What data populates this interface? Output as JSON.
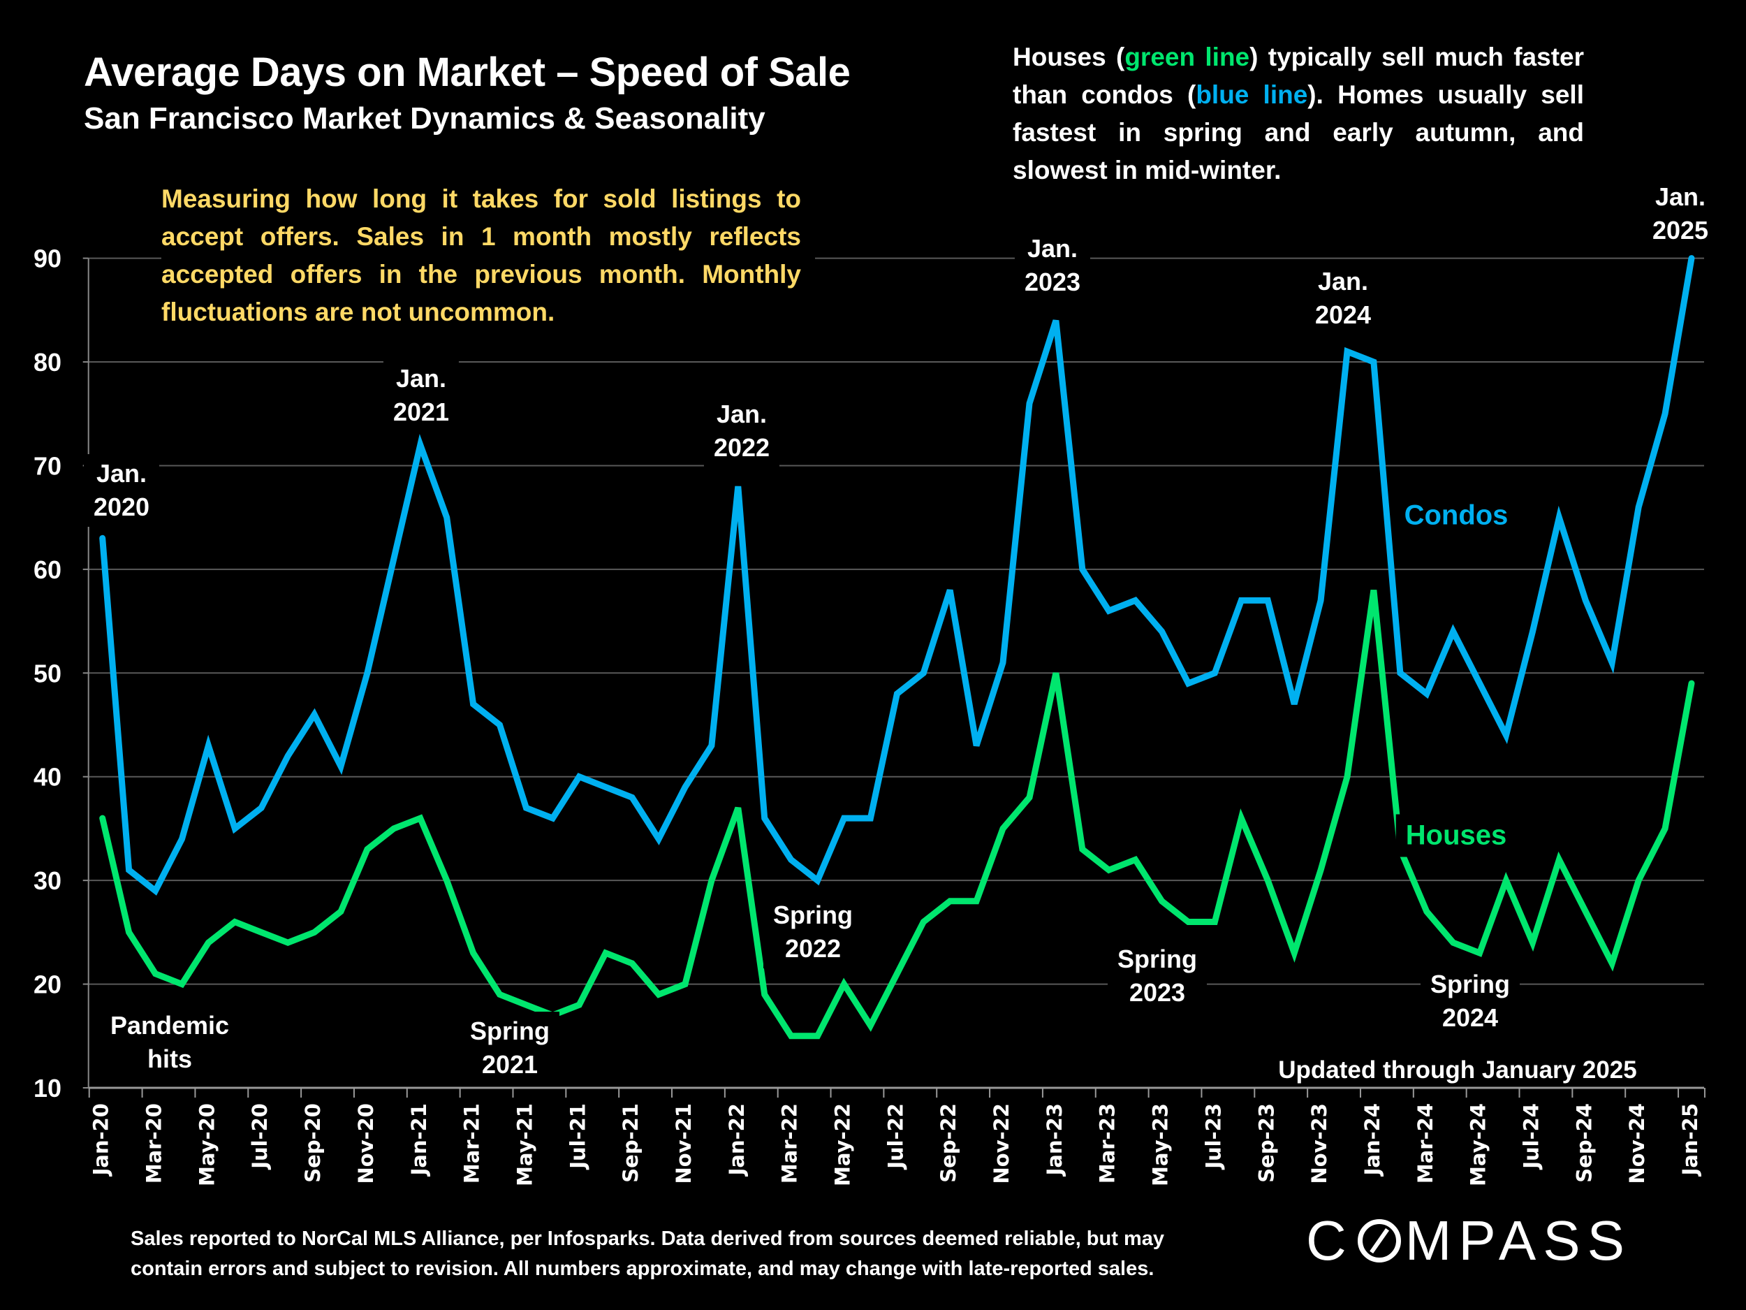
{
  "header": {
    "title": "Average Days on Market – Speed of Sale",
    "subtitle": "San Francisco Market Dynamics & Seasonality"
  },
  "notes": {
    "right": {
      "p1": "Houses (",
      "green_text": "green line",
      "p2": ") typically sell much faster than condos (",
      "blue_text": "blue line",
      "p3": "). Homes usually sell fastest in spring and early autumn, and slowest in mid-winter."
    },
    "gold": "Measuring how long it takes for sold listings to accept offers. Sales in 1 month mostly reflects accepted offers in the previous month. Monthly fluctuations are not uncommon."
  },
  "annotations": {
    "jan2020": [
      "Jan.",
      "2020"
    ],
    "jan2021": [
      "Jan.",
      "2021"
    ],
    "jan2022": [
      "Jan.",
      "2022"
    ],
    "jan2023": [
      "Jan.",
      "2023"
    ],
    "jan2024": [
      "Jan.",
      "2024"
    ],
    "jan2025": [
      "Jan.",
      "2025"
    ],
    "pandemic": [
      "Pandemic",
      "hits"
    ],
    "spring2021": [
      "Spring",
      "2021"
    ],
    "spring2022": [
      "Spring",
      "2022"
    ],
    "spring2023": [
      "Spring",
      "2023"
    ],
    "spring2024": [
      "Spring",
      "2024"
    ],
    "updated": "Updated through January 2025"
  },
  "footer": {
    "line1": "Sales reported to NorCal MLS Alliance, per Infosparks. Data derived from sources deemed reliable, but may",
    "line2": "contain errors and subject to revision. All numbers approximate, and may change with late-reported sales."
  },
  "logo": {
    "text_left": "C",
    "text_right": "MPASS"
  },
  "colors": {
    "condos": "#00B0F0",
    "houses": "#00E66E",
    "gold": "#FFD966",
    "grid": "#595959"
  },
  "chart_data": {
    "type": "line",
    "title": "Average Days on Market – Speed of Sale",
    "subtitle": "San Francisco Market Dynamics & Seasonality",
    "xlabel": "",
    "ylabel": "",
    "ylim": [
      10,
      90
    ],
    "yticks": [
      10,
      20,
      30,
      40,
      50,
      60,
      70,
      80,
      90
    ],
    "grid": true,
    "x": [
      "Jan-20",
      "Feb-20",
      "Mar-20",
      "Apr-20",
      "May-20",
      "Jun-20",
      "Jul-20",
      "Aug-20",
      "Sep-20",
      "Oct-20",
      "Nov-20",
      "Dec-20",
      "Jan-21",
      "Feb-21",
      "Mar-21",
      "Apr-21",
      "May-21",
      "Jun-21",
      "Jul-21",
      "Aug-21",
      "Sep-21",
      "Oct-21",
      "Nov-21",
      "Dec-21",
      "Jan-22",
      "Feb-22",
      "Mar-22",
      "Apr-22",
      "May-22",
      "Jun-22",
      "Jul-22",
      "Aug-22",
      "Sep-22",
      "Oct-22",
      "Nov-22",
      "Dec-22",
      "Jan-23",
      "Feb-23",
      "Mar-23",
      "Apr-23",
      "May-23",
      "Jun-23",
      "Jul-23",
      "Aug-23",
      "Sep-23",
      "Oct-23",
      "Nov-23",
      "Dec-23",
      "Jan-24",
      "Feb-24",
      "Mar-24",
      "Apr-24",
      "May-24",
      "Jun-24",
      "Jul-24",
      "Aug-24",
      "Sep-24",
      "Oct-24",
      "Nov-24",
      "Dec-24",
      "Jan-25"
    ],
    "xtick_labels_every": 2,
    "series": [
      {
        "name": "Condos",
        "color": "#00B0F0",
        "values": [
          63,
          31,
          29,
          34,
          43,
          35,
          37,
          42,
          46,
          41,
          50,
          61,
          72,
          65,
          47,
          45,
          37,
          36,
          40,
          39,
          38,
          34,
          39,
          43,
          68,
          36,
          32,
          30,
          36,
          36,
          48,
          50,
          58,
          43,
          51,
          76,
          84,
          60,
          56,
          57,
          54,
          49,
          50,
          57,
          57,
          47,
          57,
          81,
          80,
          50,
          48,
          54,
          49,
          44,
          54,
          65,
          57,
          51,
          66,
          75,
          90
        ]
      },
      {
        "name": "Houses",
        "color": "#00E66E",
        "values": [
          36,
          25,
          21,
          20,
          24,
          26,
          25,
          24,
          25,
          27,
          33,
          35,
          36,
          30,
          23,
          19,
          18,
          17,
          18,
          23,
          22,
          19,
          20,
          30,
          37,
          19,
          15,
          15,
          20,
          16,
          21,
          26,
          28,
          28,
          35,
          38,
          50,
          33,
          31,
          32,
          28,
          26,
          26,
          36,
          30,
          23,
          31,
          40,
          58,
          33,
          27,
          24,
          23,
          30,
          24,
          32,
          27,
          22,
          30,
          35,
          49
        ]
      }
    ],
    "legend": "inline-right",
    "annotations": [
      "Jan. 2020",
      "Jan. 2021",
      "Jan. 2022",
      "Jan. 2023",
      "Jan. 2024",
      "Jan. 2025",
      "Pandemic hits",
      "Spring 2021",
      "Spring 2022",
      "Spring 2023",
      "Spring 2024",
      "Updated through January 2025"
    ]
  }
}
